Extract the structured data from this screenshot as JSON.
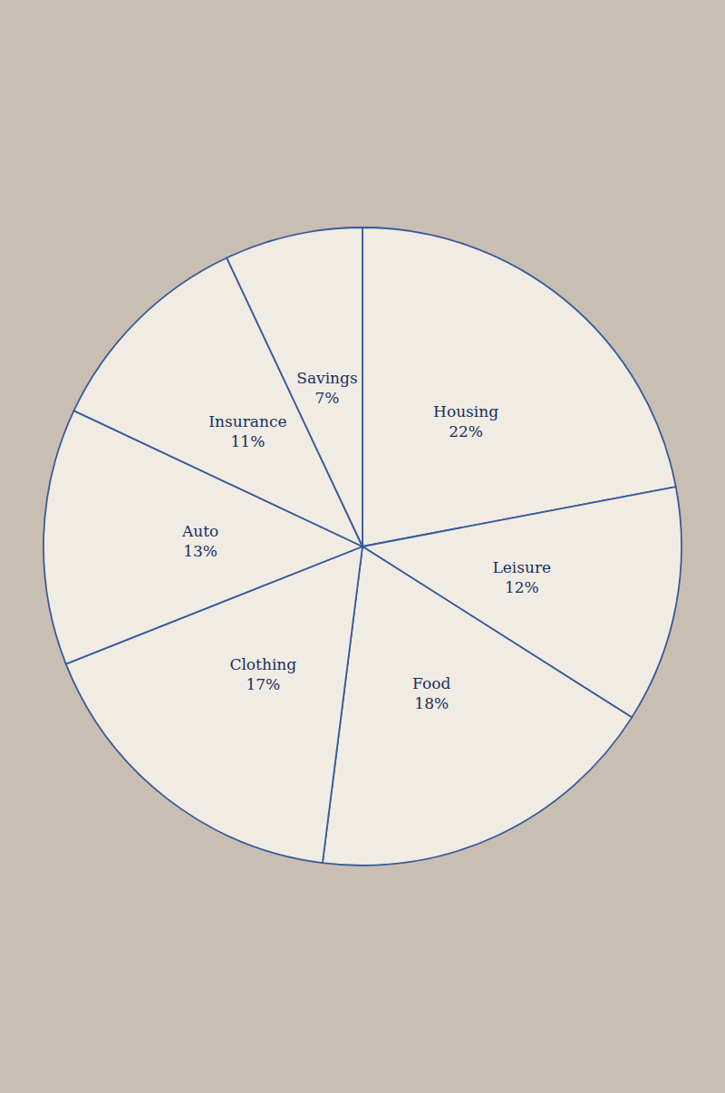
{
  "chart_data": {
    "type": "pie",
    "categories": [
      "Housing",
      "Leisure",
      "Food",
      "Clothing",
      "Auto",
      "Insurance",
      "Savings"
    ],
    "values": [
      22,
      12,
      18,
      17,
      13,
      11,
      7
    ],
    "value_labels": [
      "22%",
      "12%",
      "18%",
      "17%",
      "13%",
      "11%",
      "7%"
    ],
    "data_labels": true,
    "color": "#f0ece4",
    "legend": false
  }
}
